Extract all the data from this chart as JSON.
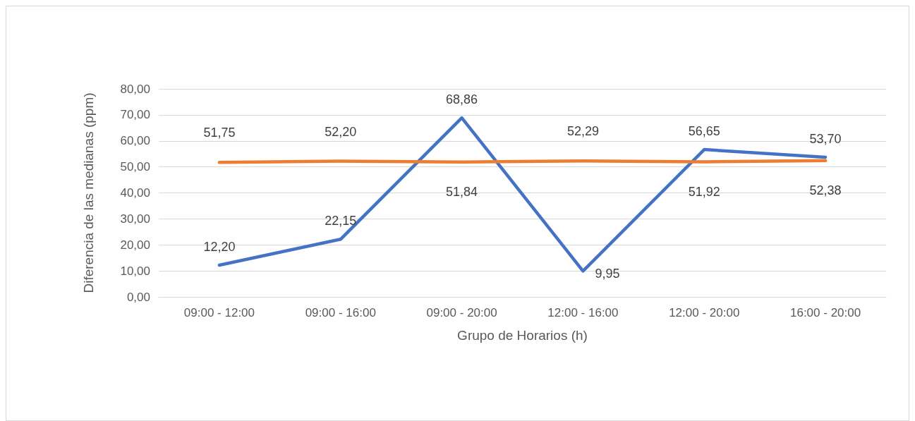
{
  "chart_data": {
    "type": "line",
    "xlabel": "Grupo de Horarios (h)",
    "ylabel": "Diferencia de las medianas (ppm)",
    "categories": [
      "09:00 - 12:00",
      "09:00 - 16:00",
      "09:00 - 20:00",
      "12:00 - 16:00",
      "12:00 - 20:00",
      "16:00 - 20:00"
    ],
    "series": [
      {
        "color": "#4472c4",
        "values": [
          12.2,
          22.15,
          68.86,
          9.95,
          56.65,
          53.7
        ],
        "value_labels": [
          "12,20",
          "22,15",
          "68,86",
          "9,95",
          "56,65",
          "53,70"
        ]
      },
      {
        "color": "#ed7d31",
        "values": [
          51.75,
          52.2,
          51.84,
          52.29,
          51.92,
          52.38
        ],
        "value_labels": [
          "51,75",
          "52,20",
          "51,84",
          "52,29",
          "51,92",
          "52,38"
        ]
      }
    ],
    "ylim": [
      0,
      80
    ],
    "yticks": [
      {
        "value": 0,
        "label": "0,00"
      },
      {
        "value": 10,
        "label": "10,00"
      },
      {
        "value": 20,
        "label": "20,00"
      },
      {
        "value": 30,
        "label": "30,00"
      },
      {
        "value": 40,
        "label": "40,00"
      },
      {
        "value": 50,
        "label": "50,00"
      },
      {
        "value": 60,
        "label": "60,00"
      },
      {
        "value": 70,
        "label": "70,00"
      },
      {
        "value": 80,
        "label": "80,00"
      }
    ],
    "grid": "y",
    "marker": "none",
    "line_style": "solid"
  }
}
